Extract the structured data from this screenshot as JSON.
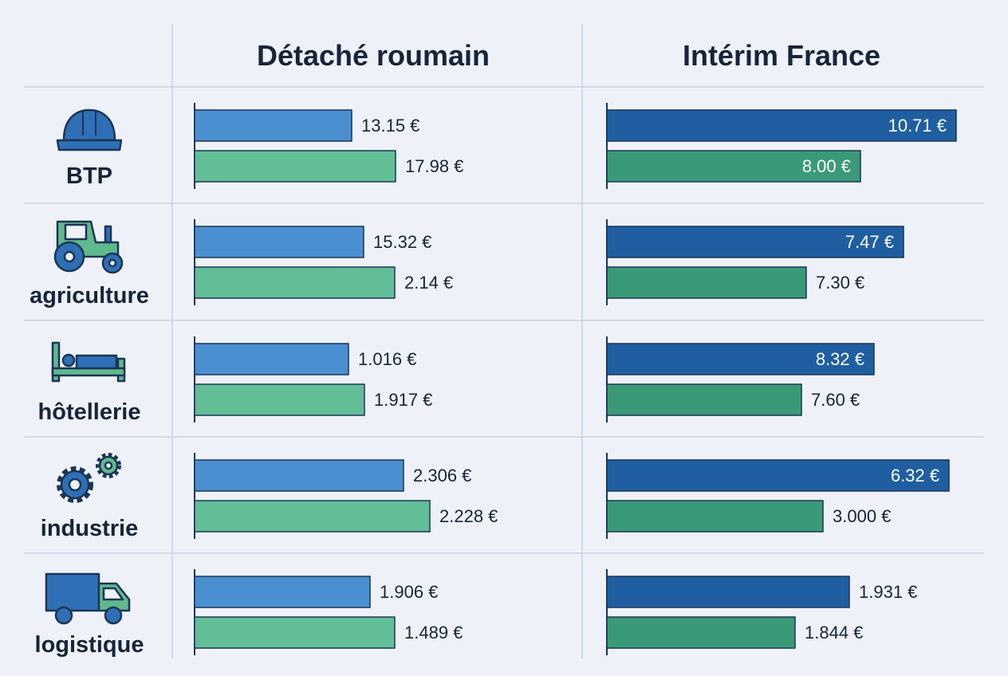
{
  "chart_data": {
    "type": "bar",
    "orientation": "horizontal",
    "panels": [
      {
        "title": "Détaché roumain"
      },
      {
        "title": "Intérim France"
      }
    ],
    "categories": [
      {
        "label": "BTP",
        "icon": "hard-hat-icon"
      },
      {
        "label": "agriculture",
        "icon": "tractor-icon"
      },
      {
        "label": "hôtellerie",
        "icon": "bed-icon"
      },
      {
        "label": "industrie",
        "icon": "gears-icon"
      },
      {
        "label": "logistique",
        "icon": "truck-icon"
      }
    ],
    "series": [
      {
        "panel": 0,
        "color": "#4a90d0",
        "values": [
          13.15,
          15.32,
          1.016,
          2.306,
          1.906
        ],
        "labels": [
          "13.15 €",
          "15.32 €",
          "1.016 €",
          "2.306 €",
          "1.906 €"
        ]
      },
      {
        "panel": 0,
        "color": "#62be97",
        "values": [
          17.98,
          2.14,
          1.917,
          2.228,
          1.489
        ],
        "labels": [
          "17.98 €",
          "2.14 €",
          "1.917 €",
          "2.228 €",
          "1.489 €"
        ]
      },
      {
        "panel": 1,
        "color": "#1f5fa1",
        "values": [
          10.71,
          7.47,
          8.32,
          6.32,
          1.931
        ],
        "labels": [
          "10.71 €",
          "7.47 €",
          "8.32 €",
          "6.32 €",
          "1.931 €"
        ],
        "label_inside": [
          true,
          true,
          true,
          true,
          false
        ]
      },
      {
        "panel": 1,
        "color": "#3a9a78",
        "values": [
          8.0,
          7.3,
          7.6,
          3.0,
          1.844
        ],
        "labels": [
          "8.00 €",
          "7.30 €",
          "7.60 €",
          "3.000 €",
          "1.844 €"
        ],
        "label_inside": [
          true,
          false,
          false,
          false,
          false
        ]
      }
    ],
    "value_axis": "non-linear (bar lengths not proportional to printed values)",
    "grid": "row separators",
    "legend": "none"
  },
  "colors": {
    "background": "#eef2f8",
    "grid": "#c7d2e2",
    "text": "#17243a",
    "icon_blue": "#2f6fb5",
    "icon_green": "#5fb98c",
    "icon_outline": "#1c3556"
  }
}
